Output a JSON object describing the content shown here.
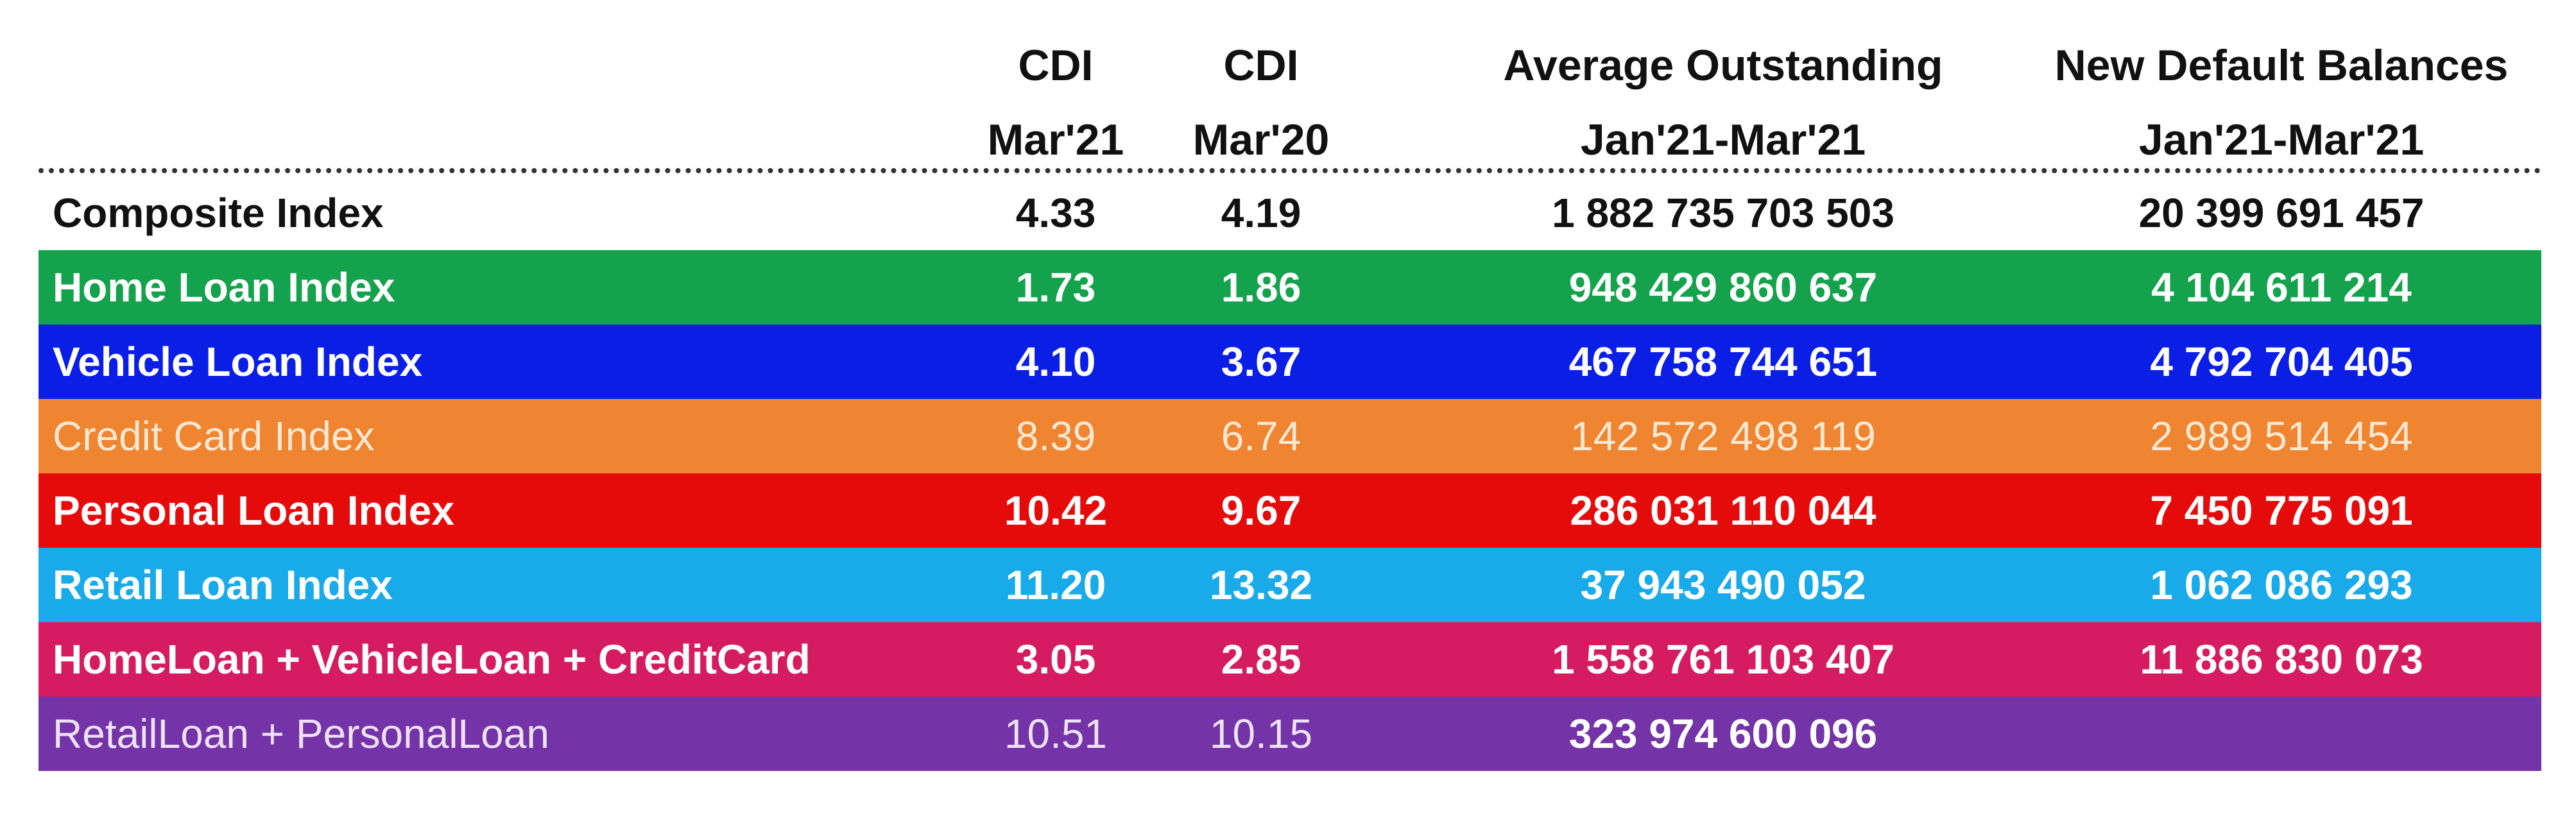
{
  "headers": {
    "cdi_mar21": [
      "CDI",
      "Mar'21"
    ],
    "cdi_mar20": [
      "CDI",
      "Mar'20"
    ],
    "avg_outstanding": [
      "Average Outstanding",
      "Jan'21-Mar'21"
    ],
    "new_default": [
      "New Default Balances",
      "Jan'21-Mar'21"
    ]
  },
  "rows": [
    {
      "name": "Composite Index",
      "cdi_mar21": "4.33",
      "cdi_mar20": "4.19",
      "avg_outstanding": "1 882 735 703 503",
      "new_default": "20 399 691 457",
      "color": "#ffffff"
    },
    {
      "name": "Home Loan Index",
      "cdi_mar21": "1.73",
      "cdi_mar20": "1.86",
      "avg_outstanding": "948 429 860 637",
      "new_default": "4 104 611 214",
      "color": "#14a24c"
    },
    {
      "name": "Vehicle Loan Index",
      "cdi_mar21": "4.10",
      "cdi_mar20": "3.67",
      "avg_outstanding": "467 758 744 651",
      "new_default": "4 792 704 405",
      "color": "#0a1ee6"
    },
    {
      "name": "Credit Card Index",
      "cdi_mar21": "8.39",
      "cdi_mar20": "6.74",
      "avg_outstanding": "142 572 498 119",
      "new_default": "2 989 514 454",
      "color": "#ef8431"
    },
    {
      "name": "Personal Loan Index",
      "cdi_mar21": "10.42",
      "cdi_mar20": "9.67",
      "avg_outstanding": "286 031 110 044",
      "new_default": "7 450 775 091",
      "color": "#e60b0b"
    },
    {
      "name": "Retail Loan Index",
      "cdi_mar21": "11.20",
      "cdi_mar20": "13.32",
      "avg_outstanding": "37 943 490 052",
      "new_default": "1 062 086 293",
      "color": "#19aaea"
    },
    {
      "name": "HomeLoan + VehicleLoan + CreditCard",
      "cdi_mar21": "3.05",
      "cdi_mar20": "2.85",
      "avg_outstanding": "1 558 761 103 407",
      "new_default": "11 886 830 073",
      "color": "#d51c60"
    },
    {
      "name": "RetailLoan + PersonalLoan",
      "cdi_mar21": "10.51",
      "cdi_mar20": "10.15",
      "avg_outstanding": "323 974 600 096",
      "new_default": "",
      "color": "#7433a6"
    }
  ]
}
